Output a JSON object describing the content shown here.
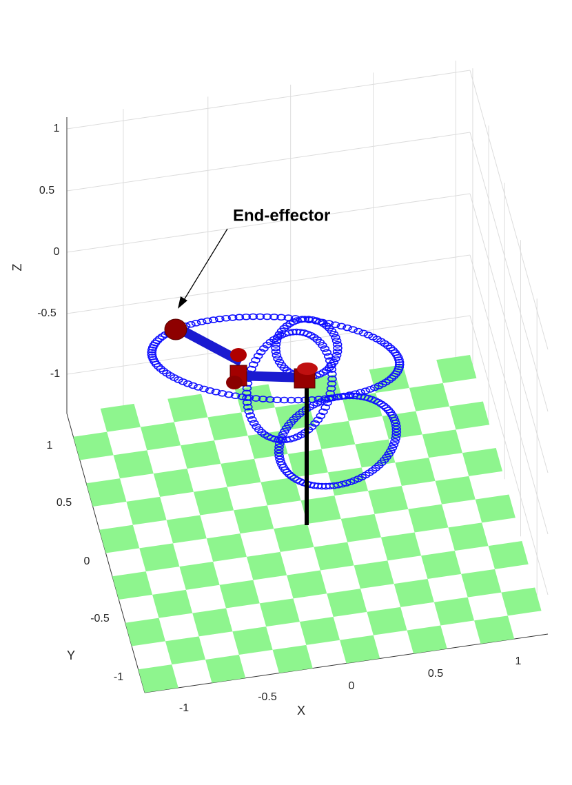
{
  "annotation": "End-effector",
  "axes": {
    "x": {
      "label": "X",
      "ticks": [
        "-1",
        "-0.5",
        "0",
        "0.5",
        "1"
      ]
    },
    "y": {
      "label": "Y",
      "ticks": [
        "-1",
        "-0.5",
        "0",
        "0.5",
        "1"
      ]
    },
    "z": {
      "label": "Z",
      "ticks": [
        "-1",
        "-0.5",
        "0",
        "0.5",
        "1"
      ]
    }
  }
}
